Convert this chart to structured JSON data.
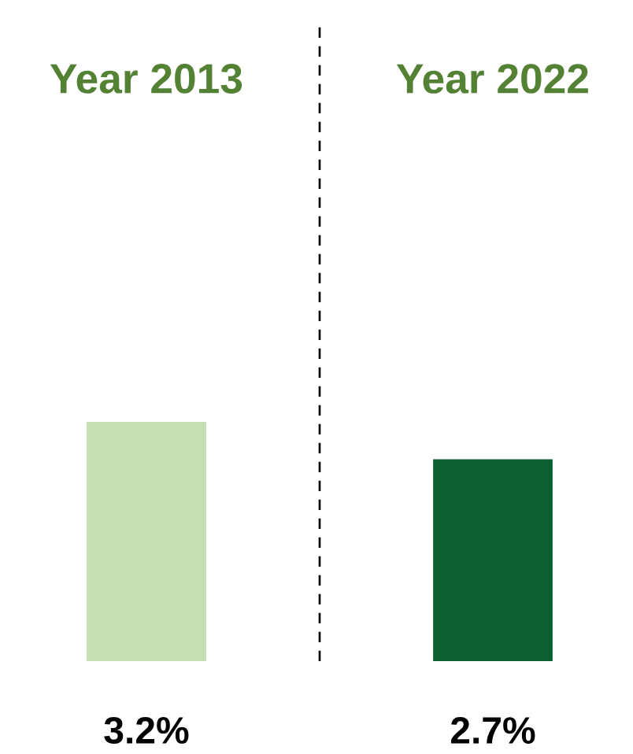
{
  "chart_data": {
    "type": "bar",
    "categories": [
      "Year 2013",
      "Year 2022"
    ],
    "values": [
      3.2,
      2.7
    ],
    "value_labels": [
      "3.2%",
      "2.7%"
    ],
    "colors": [
      "#c5e0b4",
      "#0b6132"
    ]
  }
}
